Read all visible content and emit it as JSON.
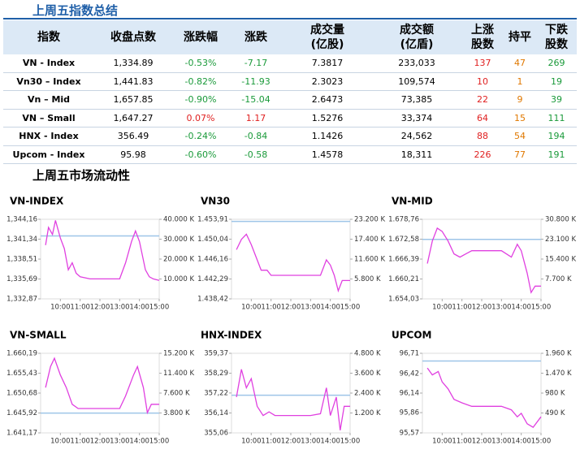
{
  "summary": {
    "title": "上周五指数总结",
    "headers": [
      [
        "指数"
      ],
      [
        "收盘点数"
      ],
      [
        "涨跌幅"
      ],
      [
        "涨跌"
      ],
      [
        "成交量",
        "(亿股)"
      ],
      [
        "成交额",
        "(亿盾)"
      ],
      [
        "上涨",
        "股数"
      ],
      [
        "持平"
      ],
      [
        "下跌",
        "股数"
      ]
    ],
    "rows": [
      [
        "VN - Index",
        "1,334.89",
        "-0.53%",
        "-7.17",
        "7.3817",
        "233,033",
        "137",
        "47",
        "269"
      ],
      [
        "Vn30 – Index",
        "1,441.83",
        "-0.82%",
        "-11.93",
        "2.3023",
        "109,574",
        "10",
        "1",
        "19"
      ],
      [
        "Vn – Mid",
        "1,657.85",
        "-0.90%",
        "-15.04",
        "2.6473",
        "73,385",
        "22",
        "9",
        "39"
      ],
      [
        "VN – Small",
        "1,647.27",
        "0.07%",
        "1.17",
        "1.5276",
        "33,374",
        "64",
        "15",
        "111"
      ],
      [
        "HNX - Index",
        "356.49",
        "-0.24%",
        "-0.84",
        "1.1426",
        "24,562",
        "88",
        "54",
        "194"
      ],
      [
        "Upcom - Index",
        "95.98",
        "-0.60%",
        "-0.58",
        "1.4578",
        "18,311",
        "226",
        "77",
        "191"
      ]
    ],
    "colors": {
      "up": "#e02020",
      "down": "#1a9a3a",
      "flat": "#e07800"
    }
  },
  "liquidity": {
    "title": "上周五市场流动性",
    "line_color": "#e040e0",
    "reference_color": "#9ec5e8",
    "charts": [
      {
        "title": "VN-INDEX",
        "ylim": [
          1332.87,
          1344.16
        ],
        "yticks": [
          {
            "value": 1332.87,
            "label": "1,332,87"
          },
          {
            "value": 1335.69,
            "label": "1,335,69"
          },
          {
            "value": 1338.51,
            "label": "1,338,51"
          },
          {
            "value": 1341.34,
            "label": "1,341,34"
          },
          {
            "value": 1344.16,
            "label": "1,344,16"
          }
        ],
        "y2lim": [
          0,
          40000
        ],
        "y2ticks": [
          {
            "value": 10000,
            "label": "10.000 K"
          },
          {
            "value": 20000,
            "label": "20.000 K"
          },
          {
            "value": 30000,
            "label": "30.000 K"
          },
          {
            "value": 40000,
            "label": "40.000 K"
          }
        ],
        "reference": 1341.8,
        "x": [
          9.25,
          9.4,
          9.6,
          9.75,
          10,
          10.2,
          10.4,
          10.6,
          10.8,
          11,
          11.5,
          13,
          13.3,
          13.6,
          13.8,
          14,
          14.3,
          14.5,
          14.7,
          15
        ],
        "values": [
          1340.5,
          1343,
          1342,
          1344,
          1341.5,
          1340,
          1337,
          1338,
          1336.5,
          1336,
          1335.7,
          1335.7,
          1338,
          1341,
          1342.5,
          1341,
          1337,
          1336,
          1335.7,
          1335.5
        ]
      },
      {
        "title": "VN30",
        "ylim": [
          1438.42,
          1453.91
        ],
        "yticks": [
          {
            "value": 1438.42,
            "label": "1.438,42"
          },
          {
            "value": 1442.29,
            "label": "1.442,29"
          },
          {
            "value": 1446.16,
            "label": "1.446,16"
          },
          {
            "value": 1450.04,
            "label": "1.450,04"
          },
          {
            "value": 1453.91,
            "label": "1.453,91"
          }
        ],
        "y2lim": [
          0,
          23200
        ],
        "y2ticks": [
          {
            "value": 5800,
            "label": "5.800 K"
          },
          {
            "value": 11600,
            "label": "11.600 K"
          },
          {
            "value": 17400,
            "label": "17.400 K"
          },
          {
            "value": 23200,
            "label": "23.200 K"
          }
        ],
        "reference": 1453.5,
        "x": [
          9.25,
          9.5,
          9.75,
          10,
          10.3,
          10.5,
          10.8,
          11,
          11.5,
          13,
          13.5,
          13.8,
          14,
          14.2,
          14.4,
          14.6,
          15
        ],
        "values": [
          1448,
          1450,
          1451,
          1449,
          1446,
          1444,
          1444,
          1443,
          1443,
          1443,
          1443,
          1446,
          1445,
          1443,
          1440,
          1442,
          1442
        ]
      },
      {
        "title": "VN-MID",
        "ylim": [
          1654.03,
          1678.76
        ],
        "yticks": [
          {
            "value": 1654.03,
            "label": "1.654,03"
          },
          {
            "value": 1660.21,
            "label": "1.660,21"
          },
          {
            "value": 1666.39,
            "label": "1.666,39"
          },
          {
            "value": 1672.58,
            "label": "1.672,58"
          },
          {
            "value": 1678.76,
            "label": "1.678,76"
          }
        ],
        "y2lim": [
          0,
          30800
        ],
        "y2ticks": [
          {
            "value": 7700,
            "label": "7.700 K"
          },
          {
            "value": 15400,
            "label": "15.400 K"
          },
          {
            "value": 23100,
            "label": "23.100 K"
          },
          {
            "value": 30800,
            "label": "30.800 K"
          }
        ],
        "reference": 1672.5,
        "x": [
          9.25,
          9.5,
          9.75,
          10,
          10.3,
          10.6,
          10.9,
          11.2,
          11.5,
          13,
          13.5,
          13.8,
          14,
          14.3,
          14.5,
          14.7,
          15
        ],
        "values": [
          1665,
          1672,
          1676,
          1675,
          1672,
          1668,
          1667,
          1668,
          1669,
          1669,
          1667,
          1671,
          1669,
          1662,
          1656,
          1658,
          1658
        ]
      },
      {
        "title": "VN-SMALL",
        "ylim": [
          1641.17,
          1660.19
        ],
        "yticks": [
          {
            "value": 1641.17,
            "label": "1.641,17"
          },
          {
            "value": 1645.92,
            "label": "1.645,92"
          },
          {
            "value": 1650.68,
            "label": "1.650,68"
          },
          {
            "value": 1655.43,
            "label": "1.655,43"
          },
          {
            "value": 1660.19,
            "label": "1.660,19"
          }
        ],
        "y2lim": [
          0,
          15200
        ],
        "y2ticks": [
          {
            "value": 3800,
            "label": "3.800 K"
          },
          {
            "value": 7600,
            "label": "7.600 K"
          },
          {
            "value": 11400,
            "label": "11.400 K"
          },
          {
            "value": 15200,
            "label": "15.200 K"
          }
        ],
        "reference": 1645.9,
        "x": [
          9.25,
          9.5,
          9.7,
          10,
          10.3,
          10.6,
          10.9,
          11.2,
          11.5,
          13,
          13.3,
          13.7,
          13.9,
          14.2,
          14.4,
          14.6,
          15
        ],
        "values": [
          1652,
          1657,
          1659,
          1655,
          1652,
          1648,
          1647,
          1647,
          1647,
          1647,
          1650,
          1655,
          1657,
          1652,
          1646,
          1648,
          1648
        ]
      },
      {
        "title": "HNX-INDEX",
        "ylim": [
          355.06,
          359.37
        ],
        "yticks": [
          {
            "value": 355.06,
            "label": "355,06"
          },
          {
            "value": 356.14,
            "label": "356,14"
          },
          {
            "value": 357.22,
            "label": "357,22"
          },
          {
            "value": 358.29,
            "label": "358,29"
          },
          {
            "value": 359.37,
            "label": "359,37"
          }
        ],
        "y2lim": [
          0,
          4800
        ],
        "y2ticks": [
          {
            "value": 1200,
            "label": "1.200 K"
          },
          {
            "value": 2400,
            "label": "2.400 K"
          },
          {
            "value": 3600,
            "label": "3.600 K"
          },
          {
            "value": 4800,
            "label": "4.800 K"
          }
        ],
        "reference": 357.1,
        "x": [
          9.25,
          9.5,
          9.75,
          10,
          10.3,
          10.6,
          10.9,
          11.2,
          11.5,
          13,
          13.5,
          13.8,
          14,
          14.3,
          14.5,
          14.7,
          15
        ],
        "values": [
          357,
          358.5,
          357.5,
          358,
          356.5,
          356,
          356.2,
          356,
          356,
          356,
          356.1,
          357.5,
          356,
          357,
          355.2,
          356.5,
          356.5
        ]
      },
      {
        "title": "UPCOM",
        "ylim": [
          95.57,
          96.71
        ],
        "yticks": [
          {
            "value": 95.57,
            "label": "95,57"
          },
          {
            "value": 95.86,
            "label": "95,86"
          },
          {
            "value": 96.14,
            "label": "96,14"
          },
          {
            "value": 96.42,
            "label": "96,42"
          },
          {
            "value": 96.71,
            "label": "96,71"
          }
        ],
        "y2lim": [
          0,
          1960
        ],
        "y2ticks": [
          {
            "value": 490,
            "label": "490 K"
          },
          {
            "value": 980,
            "label": "980 K"
          },
          {
            "value": 1470,
            "label": "1.470 K"
          },
          {
            "value": 1960,
            "label": "1.960 K"
          }
        ],
        "reference": 96.6,
        "x": [
          9.25,
          9.5,
          9.8,
          10,
          10.3,
          10.6,
          11,
          11.5,
          13,
          13.5,
          13.8,
          14,
          14.3,
          14.6,
          15
        ],
        "values": [
          96.5,
          96.4,
          96.45,
          96.3,
          96.2,
          96.05,
          96,
          95.95,
          95.95,
          95.9,
          95.8,
          95.85,
          95.7,
          95.65,
          95.8
        ]
      }
    ],
    "xlim": [
      9,
      15
    ],
    "xticks": [
      {
        "value": 10,
        "label": "10:00"
      },
      {
        "value": 11,
        "label": "11:00"
      },
      {
        "value": 12,
        "label": "12:00"
      },
      {
        "value": 13,
        "label": "13:00"
      },
      {
        "value": 14,
        "label": "14:00"
      },
      {
        "value": 15,
        "label": "15:00"
      }
    ]
  }
}
